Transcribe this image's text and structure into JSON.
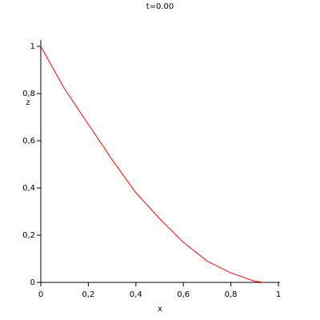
{
  "chart_data": {
    "type": "line",
    "title": "t=0.00",
    "xlabel": "x",
    "ylabel": "z",
    "x": [
      0,
      0.1,
      0.2,
      0.3,
      0.4,
      0.5,
      0.6,
      0.7,
      0.8,
      0.9,
      0.94
    ],
    "series": [
      {
        "color": "#ff0000",
        "values": [
          1,
          0.82,
          0.67,
          0.52,
          0.38,
          0.27,
          0.17,
          0.09,
          0.04,
          0.005,
          0
        ]
      }
    ],
    "xlim": [
      0,
      1
    ],
    "ylim": [
      0,
      1
    ],
    "xticks": [
      0,
      {
        "value": 0.2,
        "label": "0,2"
      },
      {
        "value": 0.4,
        "label": "0,4"
      },
      {
        "value": 0.6,
        "label": "0,6"
      },
      {
        "value": 0.8,
        "label": "0,8"
      },
      1
    ],
    "yticks": [
      0,
      {
        "value": 0.2,
        "label": "0,2"
      },
      {
        "value": 0.4,
        "label": "0,4"
      },
      {
        "value": 0.6,
        "label": "0,6"
      },
      {
        "value": 0.8,
        "label": "0,8"
      },
      1
    ]
  }
}
